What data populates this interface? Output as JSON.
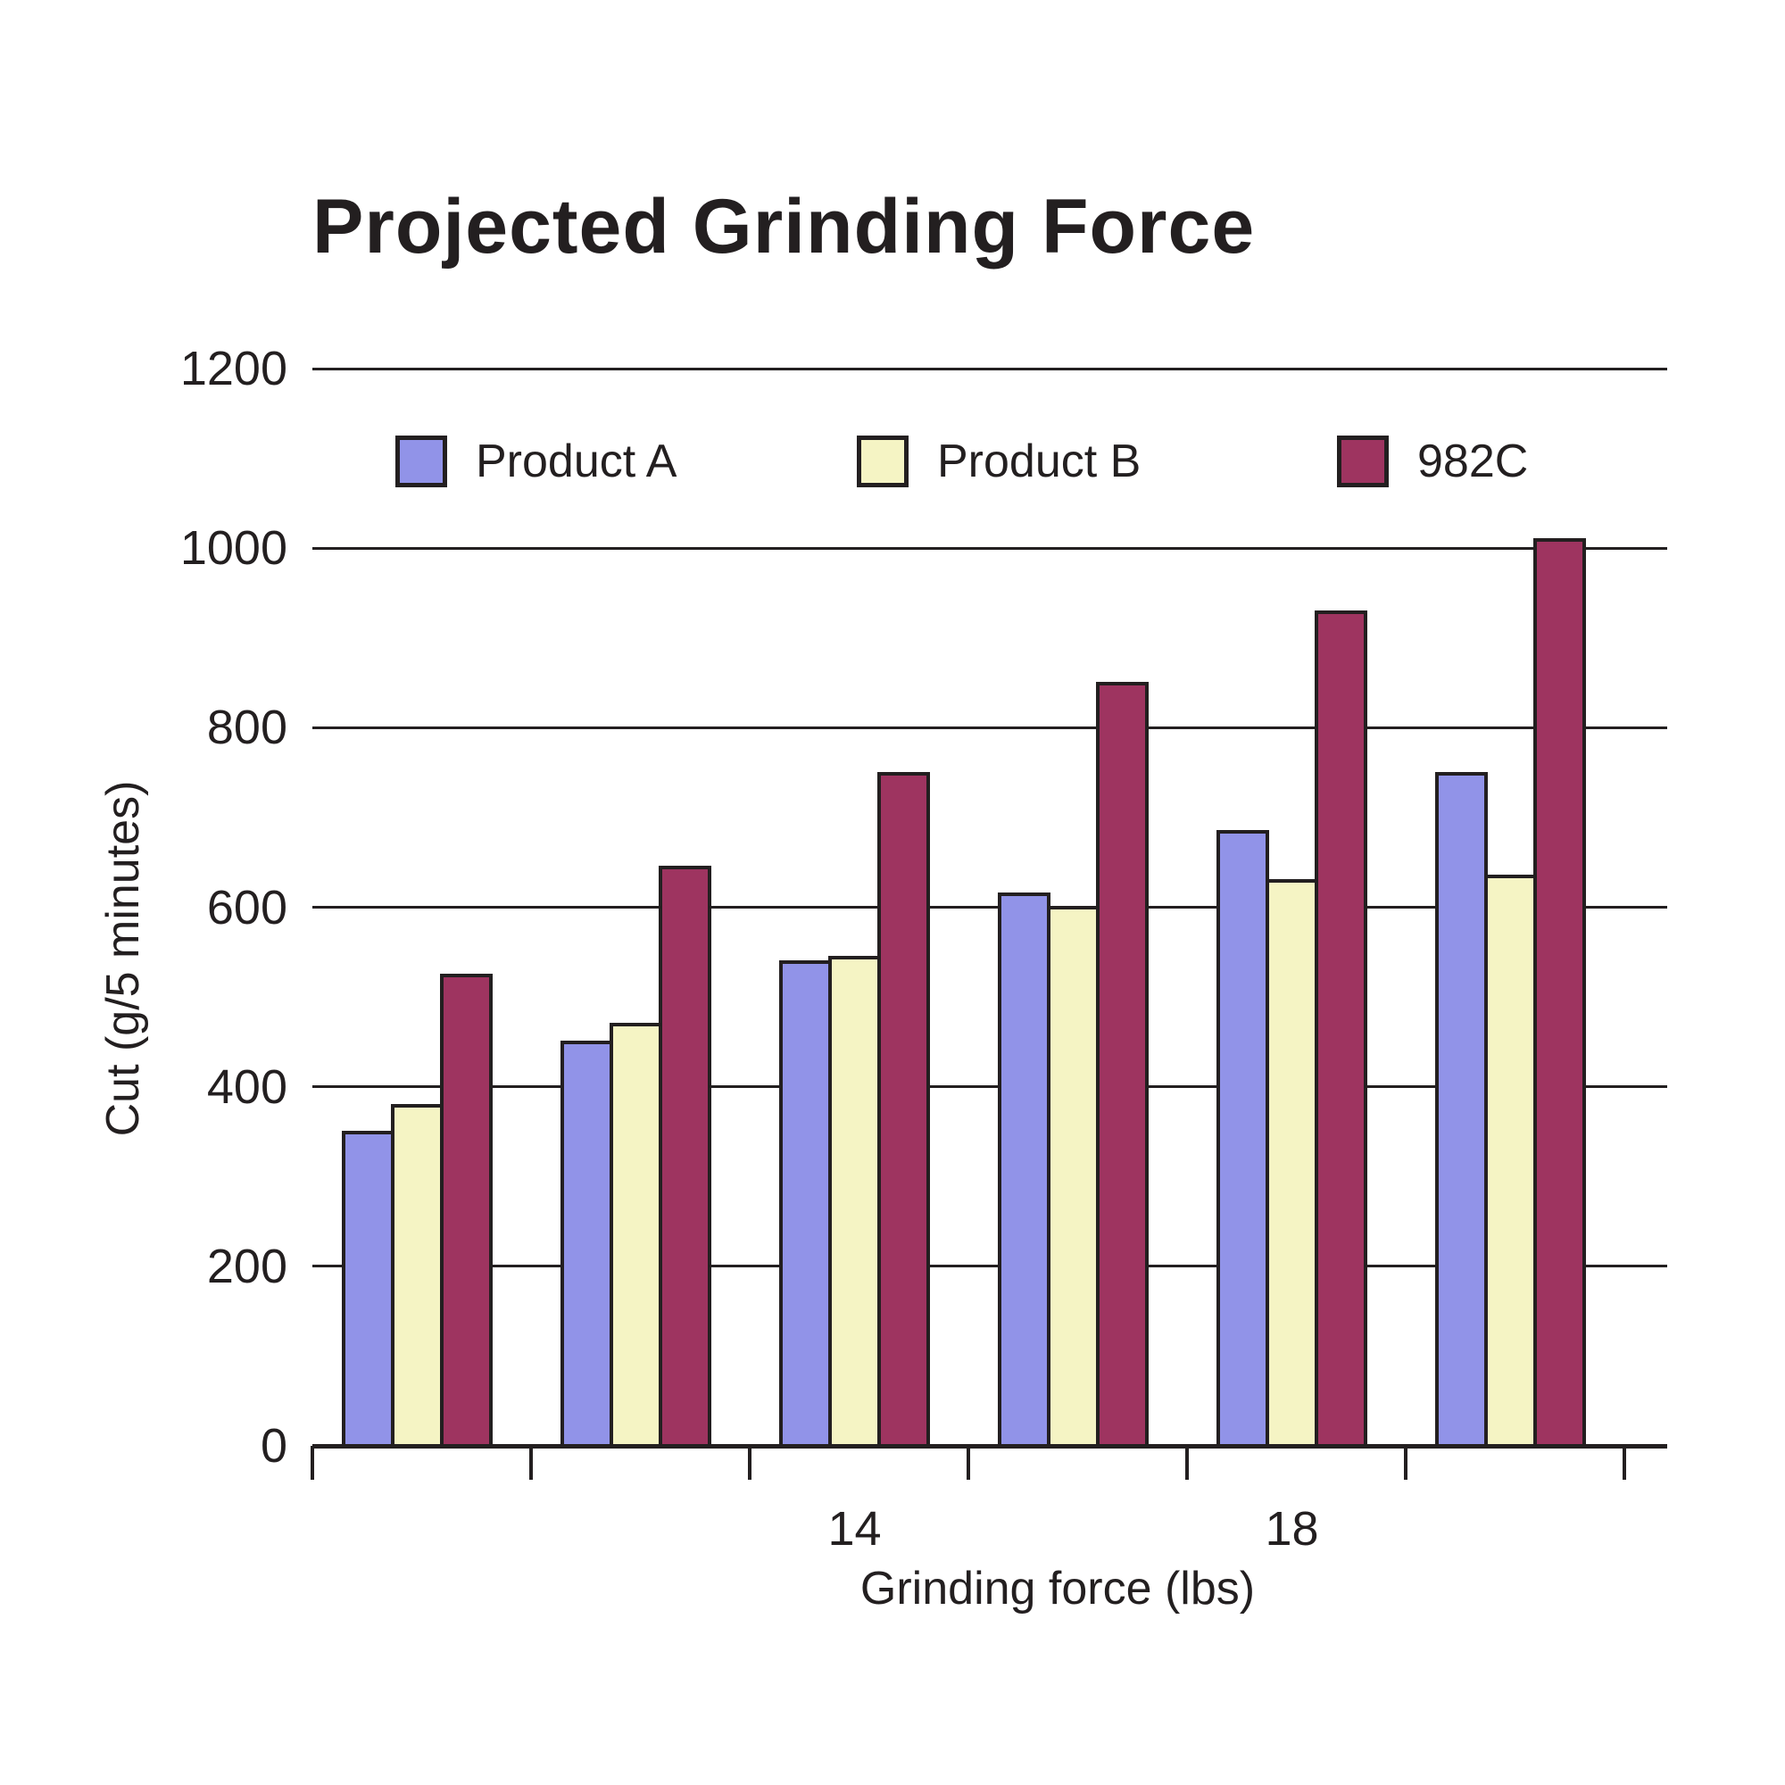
{
  "title": "Projected Grinding Force",
  "chart_data": {
    "type": "bar",
    "title": "Projected Grinding Force",
    "xlabel": "Grinding force (lbs)",
    "ylabel": "Cut (g/5 minutes)",
    "ylim": [
      0,
      1200
    ],
    "yticks": [
      0,
      200,
      400,
      600,
      800,
      1000,
      1200
    ],
    "xtick_labels": [
      "",
      "",
      "14",
      "",
      "18",
      ""
    ],
    "grid": true,
    "legend_position": "top",
    "axis_color": "#231F20",
    "series": [
      {
        "name": "Product A",
        "color": "#9193E8",
        "values": [
          350,
          450,
          540,
          615,
          685,
          750
        ]
      },
      {
        "name": "Product B",
        "color": "#F5F4C4",
        "values": [
          380,
          470,
          545,
          600,
          630,
          635
        ]
      },
      {
        "name": "982C",
        "color": "#9E3460",
        "values": [
          525,
          645,
          750,
          850,
          930,
          1010
        ]
      }
    ]
  }
}
